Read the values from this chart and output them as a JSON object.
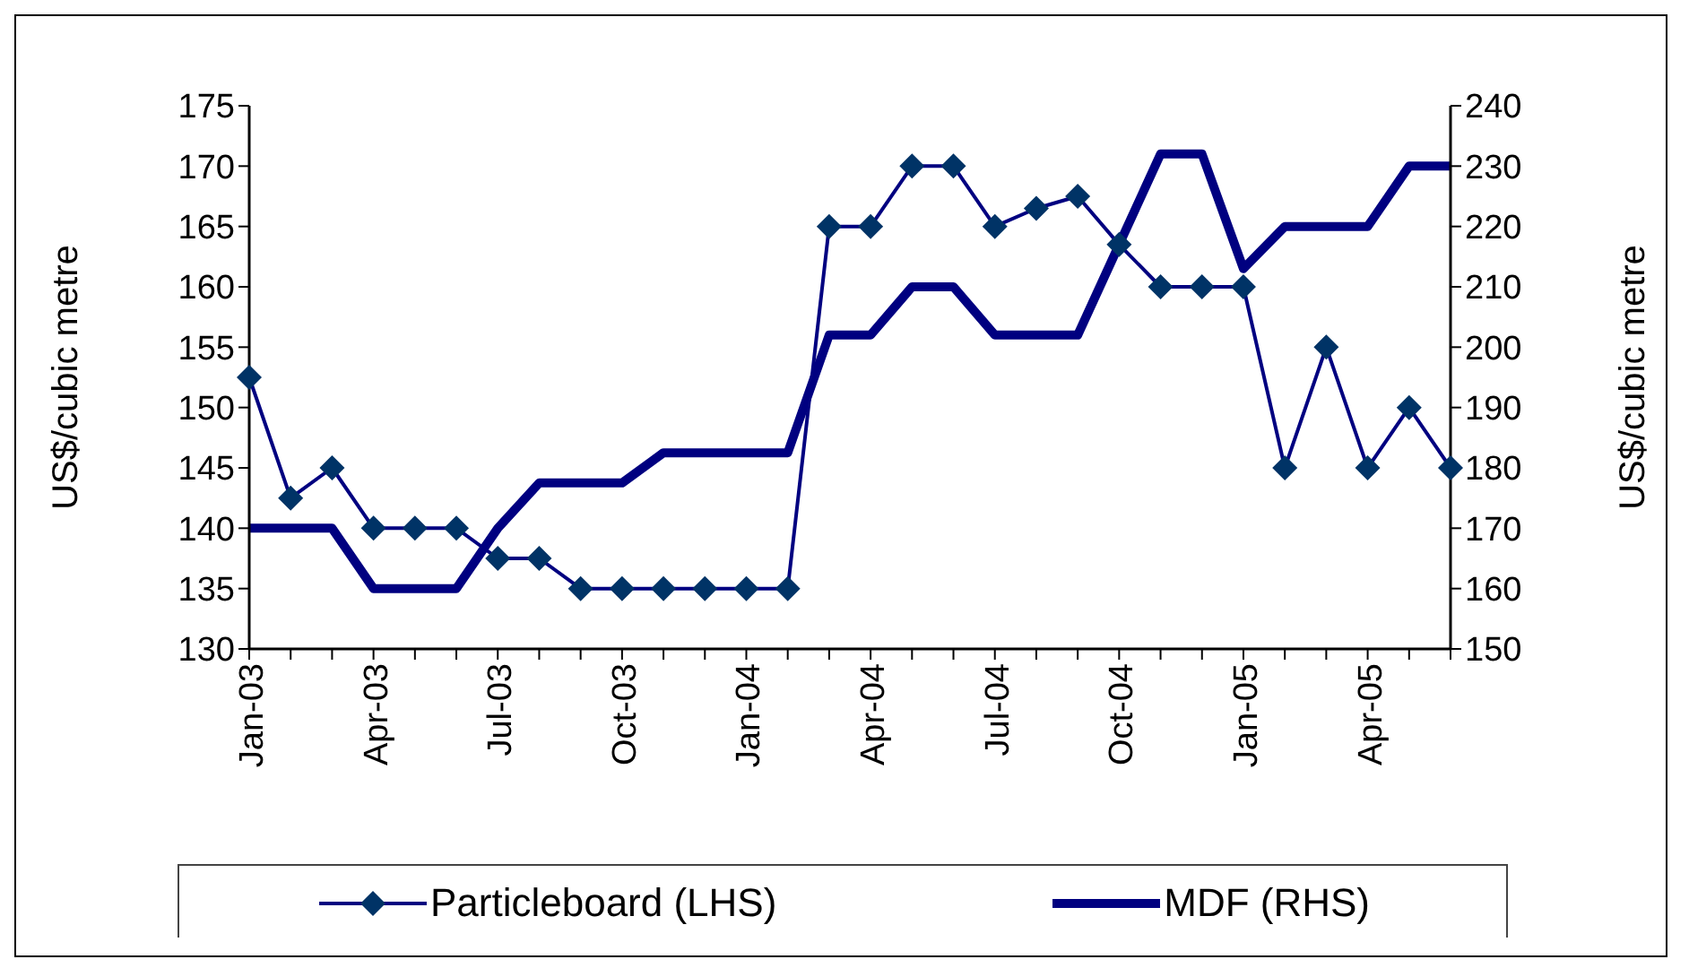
{
  "chart_data": {
    "type": "line",
    "ylabel": "US$/cubic metre",
    "y2label": "US$/cubic metre",
    "categories": [
      "Jan-03",
      null,
      null,
      "Apr-03",
      null,
      null,
      "Jul-03",
      null,
      null,
      "Oct-03",
      null,
      null,
      "Jan-04",
      null,
      null,
      "Apr-04",
      null,
      null,
      "Jul-04",
      null,
      null,
      "Oct-04",
      null,
      null,
      "Jan-05",
      null,
      null,
      "Apr-05",
      null,
      null
    ],
    "series": [
      {
        "name": "Particleboard (LHS)",
        "color": "#000080",
        "marker": "diamond",
        "values": [
          152.5,
          142.5,
          145,
          140,
          140,
          140,
          137.5,
          137.5,
          135,
          135,
          135,
          135,
          135,
          135,
          165,
          165,
          170,
          170,
          165,
          166.5,
          167.5,
          163.5,
          160,
          160,
          160,
          145,
          155,
          145,
          150,
          145
        ]
      },
      {
        "name": "MDF (RHS)",
        "color": "#000080",
        "axis": "y2",
        "marker": "none",
        "values": [
          170,
          170,
          170,
          160,
          160,
          160,
          170,
          177.5,
          177.5,
          177.5,
          182.5,
          182.5,
          182.5,
          182.5,
          202,
          202,
          210,
          210,
          202,
          202,
          202,
          217,
          232,
          232,
          213,
          220,
          220,
          220,
          230,
          230
        ]
      }
    ],
    "ylim": [
      130,
      175
    ],
    "yticks": [
      130,
      135,
      140,
      145,
      150,
      155,
      160,
      165,
      170,
      175
    ],
    "y2lim": [
      150,
      240
    ],
    "y2ticks": [
      150,
      160,
      170,
      180,
      190,
      200,
      210,
      220,
      230,
      240
    ],
    "legend": "bottom"
  }
}
